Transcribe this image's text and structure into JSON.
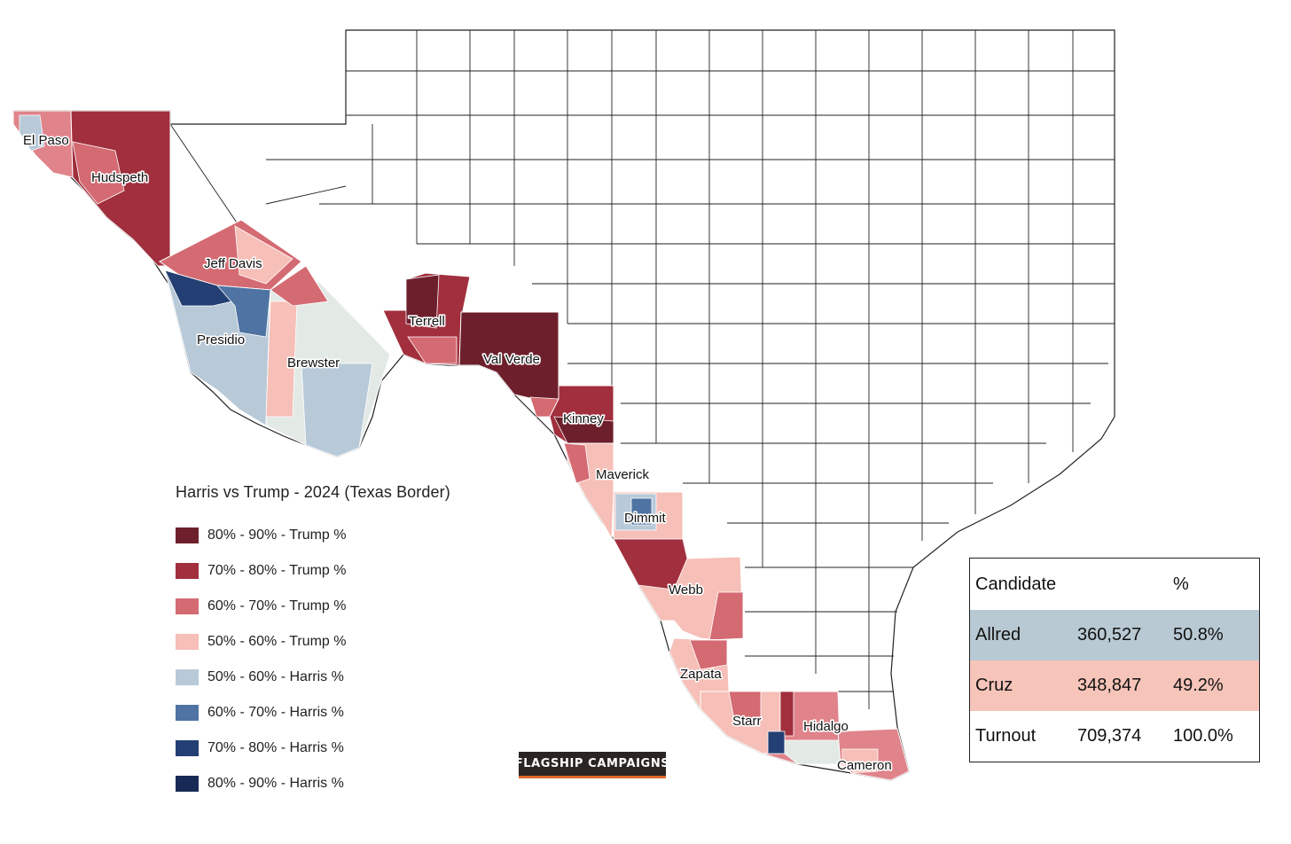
{
  "legend": {
    "title": "Harris vs Trump - 2024 (Texas Border)",
    "items": [
      {
        "label": "80% - 90% - Trump %",
        "color": "#6e1f2c"
      },
      {
        "label": "70% - 80% - Trump %",
        "color": "#a12f3d"
      },
      {
        "label": "60% - 70% - Trump %",
        "color": "#d46a72"
      },
      {
        "label": "50% - 60% - Trump %",
        "color": "#f6bfb7"
      },
      {
        "label": "50% - 60% - Harris %",
        "color": "#b8c9d8"
      },
      {
        "label": "60% - 70% - Harris %",
        "color": "#4f74a3"
      },
      {
        "label": "70% - 80% - Harris %",
        "color": "#243f73"
      },
      {
        "label": "80% - 90% - Harris %",
        "color": "#172a56"
      }
    ]
  },
  "results": {
    "headers": {
      "candidate": "Candidate",
      "percent": "%"
    },
    "rows": [
      {
        "name": "Allred",
        "votes": "360,527",
        "percent": "50.8%",
        "color": "#b8c9d3"
      },
      {
        "name": "Cruz",
        "votes": "348,847",
        "percent": "49.2%",
        "color": "#f6c4b9"
      },
      {
        "name": "Turnout",
        "votes": "709,374",
        "percent": "100.0%",
        "color": "#ffffff"
      }
    ]
  },
  "counties": {
    "el_paso": "El Paso",
    "hudspeth": "Hudspeth",
    "jeff_davis": "Jeff Davis",
    "presidio": "Presidio",
    "brewster": "Brewster",
    "terrell": "Terrell",
    "val_verde": "Val Verde",
    "kinney": "Kinney",
    "maverick": "Maverick",
    "dimmit": "Dimmit",
    "webb": "Webb",
    "zapata": "Zapata",
    "starr": "Starr",
    "hidalgo": "Hidalgo",
    "cameron": "Cameron"
  },
  "logo": {
    "text": "FLAGSHIP CAMPAIGNS",
    "star": "★"
  },
  "colors": {
    "trump_80_90": "#6e1f2c",
    "trump_70_80": "#a12f3d",
    "trump_60_70": "#d46a72",
    "trump_50_60": "#f6bfb7",
    "harris_50_60": "#b8c9d8",
    "harris_60_70": "#4f74a3",
    "harris_70_80": "#243f73",
    "harris_80_90": "#172a56",
    "neutral": "#e3eae6"
  }
}
